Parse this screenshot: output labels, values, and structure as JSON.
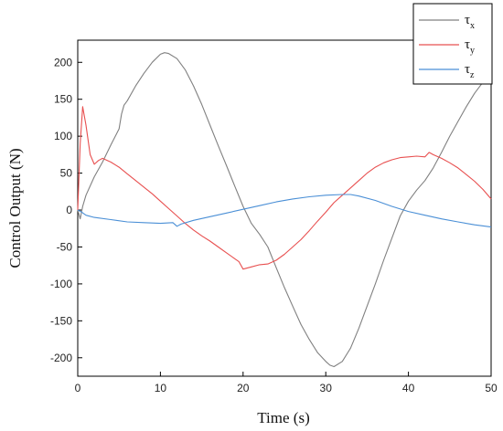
{
  "chart_data": {
    "type": "line",
    "xlabel": "Time (s)",
    "ylabel": "Control Output (N)",
    "xlim": [
      0,
      50
    ],
    "ylim": [
      -225,
      230
    ],
    "x_ticks": [
      0,
      10,
      20,
      30,
      40,
      50
    ],
    "y_ticks": [
      -200,
      -150,
      -100,
      -50,
      0,
      50,
      100,
      150,
      200
    ],
    "grid": false,
    "legend_position": "top-right",
    "series": [
      {
        "name_main": "τ",
        "name_sub": "x",
        "color": "#808080",
        "x": [
          0,
          0.3,
          0.6,
          1.0,
          2.0,
          3.0,
          4.0,
          5.0,
          5.3,
          5.6,
          6.0,
          7.0,
          8.0,
          9.0,
          10.0,
          10.5,
          11.0,
          12.0,
          13.0,
          14.0,
          15.0,
          16.0,
          17.0,
          18.0,
          19.0,
          20.0,
          21.0,
          22.0,
          23.0,
          24.0,
          25.0,
          26.0,
          27.0,
          28.0,
          29.0,
          30.0,
          30.5,
          31.0,
          32.0,
          33.0,
          34.0,
          35.0,
          36.0,
          37.0,
          38.0,
          39.0,
          40.0,
          41.0,
          42.0,
          43.0,
          44.0,
          45.0,
          46.0,
          47.0,
          48.0,
          49.0,
          50.0
        ],
        "y": [
          0,
          -12,
          5,
          20,
          45,
          65,
          88,
          110,
          130,
          142,
          148,
          168,
          185,
          200,
          211,
          213,
          212,
          205,
          190,
          168,
          143,
          115,
          87,
          60,
          32,
          5,
          -18,
          -33,
          -50,
          -78,
          -105,
          -130,
          -155,
          -175,
          -193,
          -205,
          -210,
          -212,
          -205,
          -187,
          -160,
          -130,
          -100,
          -68,
          -38,
          -8,
          12,
          27,
          40,
          57,
          78,
          100,
          120,
          140,
          158,
          173,
          188
        ]
      },
      {
        "name_main": "τ",
        "name_sub": "y",
        "color": "#e85050",
        "x": [
          0,
          0.3,
          0.6,
          1.0,
          1.5,
          2.0,
          2.5,
          3.0,
          4.0,
          5.0,
          6.0,
          7.0,
          8.0,
          9.0,
          10.0,
          11.0,
          12.0,
          13.0,
          14.0,
          15.0,
          16.0,
          17.0,
          18.0,
          19.0,
          19.5,
          20.0,
          21.0,
          22.0,
          23.0,
          24.0,
          25.0,
          26.0,
          27.0,
          28.0,
          29.0,
          30.0,
          31.0,
          32.0,
          33.0,
          34.0,
          35.0,
          36.0,
          37.0,
          38.0,
          39.0,
          40.0,
          41.0,
          42.0,
          42.5,
          43.0,
          44.0,
          45.0,
          46.0,
          47.0,
          48.0,
          49.0,
          50.0
        ],
        "y": [
          0,
          90,
          140,
          115,
          75,
          62,
          67,
          70,
          65,
          58,
          49,
          40,
          31,
          22,
          12,
          2,
          -8,
          -18,
          -27,
          -35,
          -42,
          -50,
          -58,
          -66,
          -70,
          -80,
          -77,
          -74,
          -73,
          -68,
          -60,
          -50,
          -40,
          -28,
          -15,
          -3,
          10,
          20,
          30,
          40,
          50,
          58,
          64,
          68,
          71,
          72,
          73,
          72,
          78,
          75,
          70,
          64,
          57,
          48,
          39,
          28,
          15
        ]
      },
      {
        "name_main": "τ",
        "name_sub": "z",
        "color": "#4a8fd6",
        "x": [
          0,
          0.5,
          1.0,
          2.0,
          4.0,
          6.0,
          8.0,
          10.0,
          11.5,
          12.0,
          12.5,
          14.0,
          16.0,
          18.0,
          20.0,
          22.0,
          24.0,
          26.0,
          28.0,
          30.0,
          32.0,
          33.0,
          34.0,
          36.0,
          38.0,
          40.0,
          42.0,
          44.0,
          46.0,
          48.0,
          50.0
        ],
        "y": [
          0,
          -3,
          -7,
          -10,
          -13,
          -16,
          -17,
          -18,
          -17,
          -22,
          -19,
          -14,
          -9,
          -4,
          1,
          6,
          11,
          15,
          18,
          20,
          21,
          21,
          19,
          13,
          5,
          -2,
          -7,
          -12,
          -16,
          -20,
          -23
        ]
      }
    ]
  }
}
